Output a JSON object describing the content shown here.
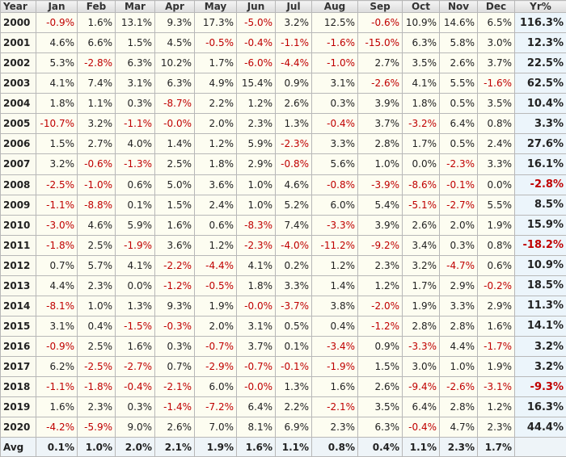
{
  "table": {
    "header": [
      "Year",
      "Jan",
      "Feb",
      "Mar",
      "Apr",
      "May",
      "Jun",
      "Jul",
      "Aug",
      "Sep",
      "Oct",
      "Nov",
      "Dec",
      "Yr%"
    ],
    "rows": [
      [
        "2000",
        "-0.9%",
        "1.6%",
        "13.1%",
        "9.3%",
        "17.3%",
        "-5.0%",
        "3.2%",
        "12.5%",
        "-0.6%",
        "10.9%",
        "14.6%",
        "6.5%",
        "116.3%"
      ],
      [
        "2001",
        "4.6%",
        "6.6%",
        "1.5%",
        "4.5%",
        "-0.5%",
        "-0.4%",
        "-1.1%",
        "-1.6%",
        "-15.0%",
        "6.3%",
        "5.8%",
        "3.0%",
        "12.3%"
      ],
      [
        "2002",
        "5.3%",
        "-2.8%",
        "6.3%",
        "10.2%",
        "1.7%",
        "-6.0%",
        "-4.4%",
        "-1.0%",
        "2.7%",
        "3.5%",
        "2.6%",
        "3.7%",
        "22.5%"
      ],
      [
        "2003",
        "4.1%",
        "7.4%",
        "3.1%",
        "6.3%",
        "4.9%",
        "15.4%",
        "0.9%",
        "3.1%",
        "-2.6%",
        "4.1%",
        "5.5%",
        "-1.6%",
        "62.5%"
      ],
      [
        "2004",
        "1.8%",
        "1.1%",
        "0.3%",
        "-8.7%",
        "2.2%",
        "1.2%",
        "2.6%",
        "0.3%",
        "3.9%",
        "1.8%",
        "0.5%",
        "3.5%",
        "10.4%"
      ],
      [
        "2005",
        "-10.7%",
        "3.2%",
        "-1.1%",
        "-0.0%",
        "2.0%",
        "2.3%",
        "1.3%",
        "-0.4%",
        "3.7%",
        "-3.2%",
        "6.4%",
        "0.8%",
        "3.3%"
      ],
      [
        "2006",
        "1.5%",
        "2.7%",
        "4.0%",
        "1.4%",
        "1.2%",
        "5.9%",
        "-2.3%",
        "3.3%",
        "2.8%",
        "1.7%",
        "0.5%",
        "2.4%",
        "27.6%"
      ],
      [
        "2007",
        "3.2%",
        "-0.6%",
        "-1.3%",
        "2.5%",
        "1.8%",
        "2.9%",
        "-0.8%",
        "5.6%",
        "1.0%",
        "0.0%",
        "-2.3%",
        "3.3%",
        "16.1%"
      ],
      [
        "2008",
        "-2.5%",
        "-1.0%",
        "0.6%",
        "5.0%",
        "3.6%",
        "1.0%",
        "4.6%",
        "-0.8%",
        "-3.9%",
        "-8.6%",
        "-0.1%",
        "0.0%",
        "-2.8%"
      ],
      [
        "2009",
        "-1.1%",
        "-8.8%",
        "0.1%",
        "1.5%",
        "2.4%",
        "1.0%",
        "5.2%",
        "6.0%",
        "5.4%",
        "-5.1%",
        "-2.7%",
        "5.5%",
        "8.5%"
      ],
      [
        "2010",
        "-3.0%",
        "4.6%",
        "5.9%",
        "1.6%",
        "0.6%",
        "-8.3%",
        "7.4%",
        "-3.3%",
        "3.9%",
        "2.6%",
        "2.0%",
        "1.9%",
        "15.9%"
      ],
      [
        "2011",
        "-1.8%",
        "2.5%",
        "-1.9%",
        "3.6%",
        "1.2%",
        "-2.3%",
        "-4.0%",
        "-11.2%",
        "-9.2%",
        "3.4%",
        "0.3%",
        "0.8%",
        "-18.2%"
      ],
      [
        "2012",
        "0.7%",
        "5.7%",
        "4.1%",
        "-2.2%",
        "-4.4%",
        "4.1%",
        "0.2%",
        "1.2%",
        "2.3%",
        "3.2%",
        "-4.7%",
        "0.6%",
        "10.9%"
      ],
      [
        "2013",
        "4.4%",
        "2.3%",
        "0.0%",
        "-1.2%",
        "-0.5%",
        "1.8%",
        "3.3%",
        "1.4%",
        "1.2%",
        "1.7%",
        "2.9%",
        "-0.2%",
        "18.5%"
      ],
      [
        "2014",
        "-8.1%",
        "1.0%",
        "1.3%",
        "9.3%",
        "1.9%",
        "-0.0%",
        "-3.7%",
        "3.8%",
        "-2.0%",
        "1.9%",
        "3.3%",
        "2.9%",
        "11.3%"
      ],
      [
        "2015",
        "3.1%",
        "0.4%",
        "-1.5%",
        "-0.3%",
        "2.0%",
        "3.1%",
        "0.5%",
        "0.4%",
        "-1.2%",
        "2.8%",
        "2.8%",
        "1.6%",
        "14.1%"
      ],
      [
        "2016",
        "-0.9%",
        "2.5%",
        "1.6%",
        "0.3%",
        "-0.7%",
        "3.7%",
        "0.1%",
        "-3.4%",
        "0.9%",
        "-3.3%",
        "4.4%",
        "-1.7%",
        "3.2%"
      ],
      [
        "2017",
        "6.2%",
        "-2.5%",
        "-2.7%",
        "0.7%",
        "-2.9%",
        "-0.7%",
        "-0.1%",
        "-1.9%",
        "1.5%",
        "3.0%",
        "1.0%",
        "1.9%",
        "3.2%"
      ],
      [
        "2018",
        "-1.1%",
        "-1.8%",
        "-0.4%",
        "-2.1%",
        "6.0%",
        "-0.0%",
        "1.3%",
        "1.6%",
        "2.6%",
        "-9.4%",
        "-2.6%",
        "-3.1%",
        "-9.3%"
      ],
      [
        "2019",
        "1.6%",
        "2.3%",
        "0.3%",
        "-1.4%",
        "-7.2%",
        "6.4%",
        "2.2%",
        "-2.1%",
        "3.5%",
        "6.4%",
        "2.8%",
        "1.2%",
        "16.3%"
      ],
      [
        "2020",
        "-4.2%",
        "-5.9%",
        "9.0%",
        "2.6%",
        "7.0%",
        "8.1%",
        "6.9%",
        "2.3%",
        "6.3%",
        "-0.4%",
        "4.7%",
        "2.3%",
        "44.4%"
      ]
    ],
    "footer": [
      "Avg",
      "0.1%",
      "1.0%",
      "2.0%",
      "2.1%",
      "1.9%",
      "1.6%",
      "1.1%",
      "0.8%",
      "0.4%",
      "1.1%",
      "2.3%",
      "1.7%"
    ]
  }
}
